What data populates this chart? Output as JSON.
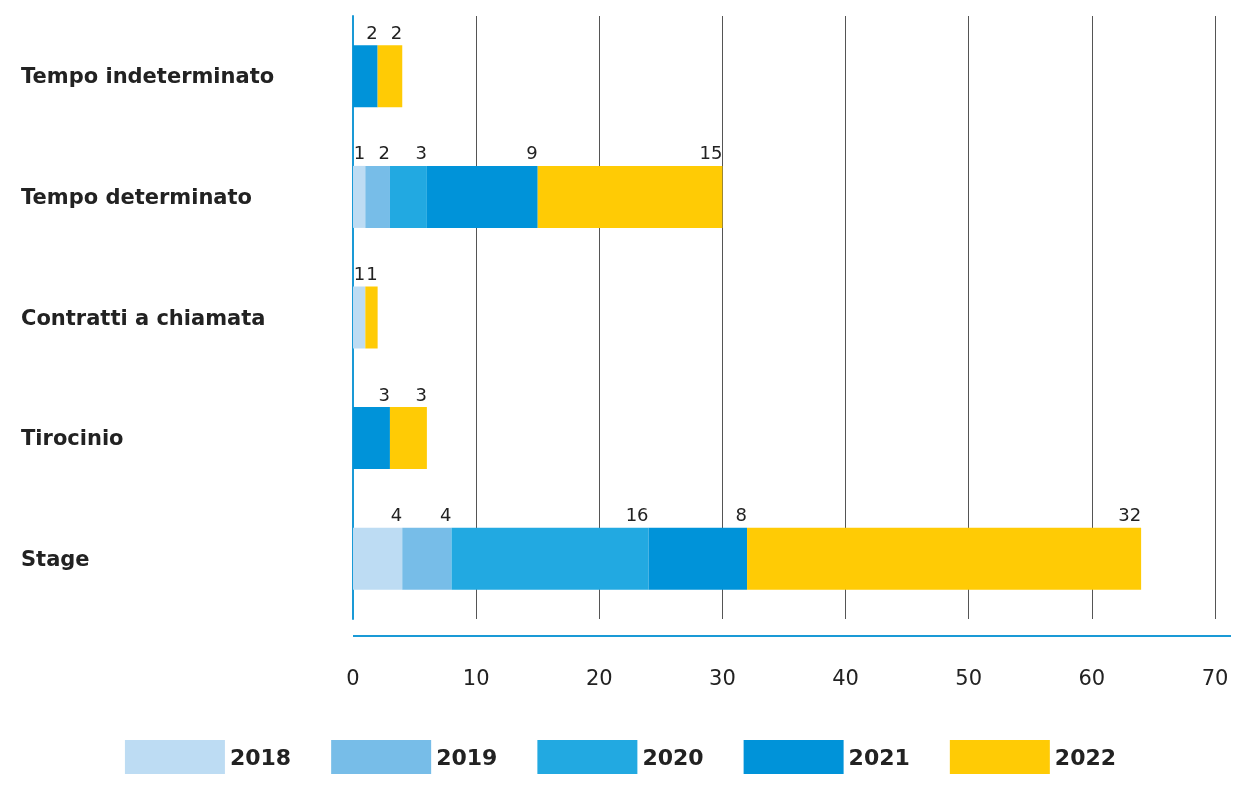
{
  "chart_data": {
    "type": "bar",
    "orientation": "horizontal",
    "stacked": true,
    "data_labels": true,
    "grid": "x",
    "legend": "bottom",
    "categories": [
      "Tempo indeterminato",
      "Tempo determinato",
      "Contratti a chiamata",
      "Tirocinio",
      "Stage"
    ],
    "xlim": [
      0,
      70
    ],
    "xticks": [
      0,
      10,
      20,
      30,
      40,
      50,
      60,
      70
    ],
    "series": [
      {
        "name": "2018",
        "color": "#bddcf3",
        "values": [
          null,
          1,
          1,
          null,
          4
        ]
      },
      {
        "name": "2019",
        "color": "#77bde8",
        "values": [
          null,
          2,
          null,
          null,
          4
        ]
      },
      {
        "name": "2020",
        "color": "#22a9e1",
        "values": [
          null,
          3,
          null,
          null,
          16
        ]
      },
      {
        "name": "2021",
        "color": "#0093d9",
        "values": [
          2,
          9,
          null,
          3,
          8
        ]
      },
      {
        "name": "2022",
        "color": "#ffcb05",
        "values": [
          2,
          15,
          1,
          3,
          32
        ]
      }
    ]
  }
}
